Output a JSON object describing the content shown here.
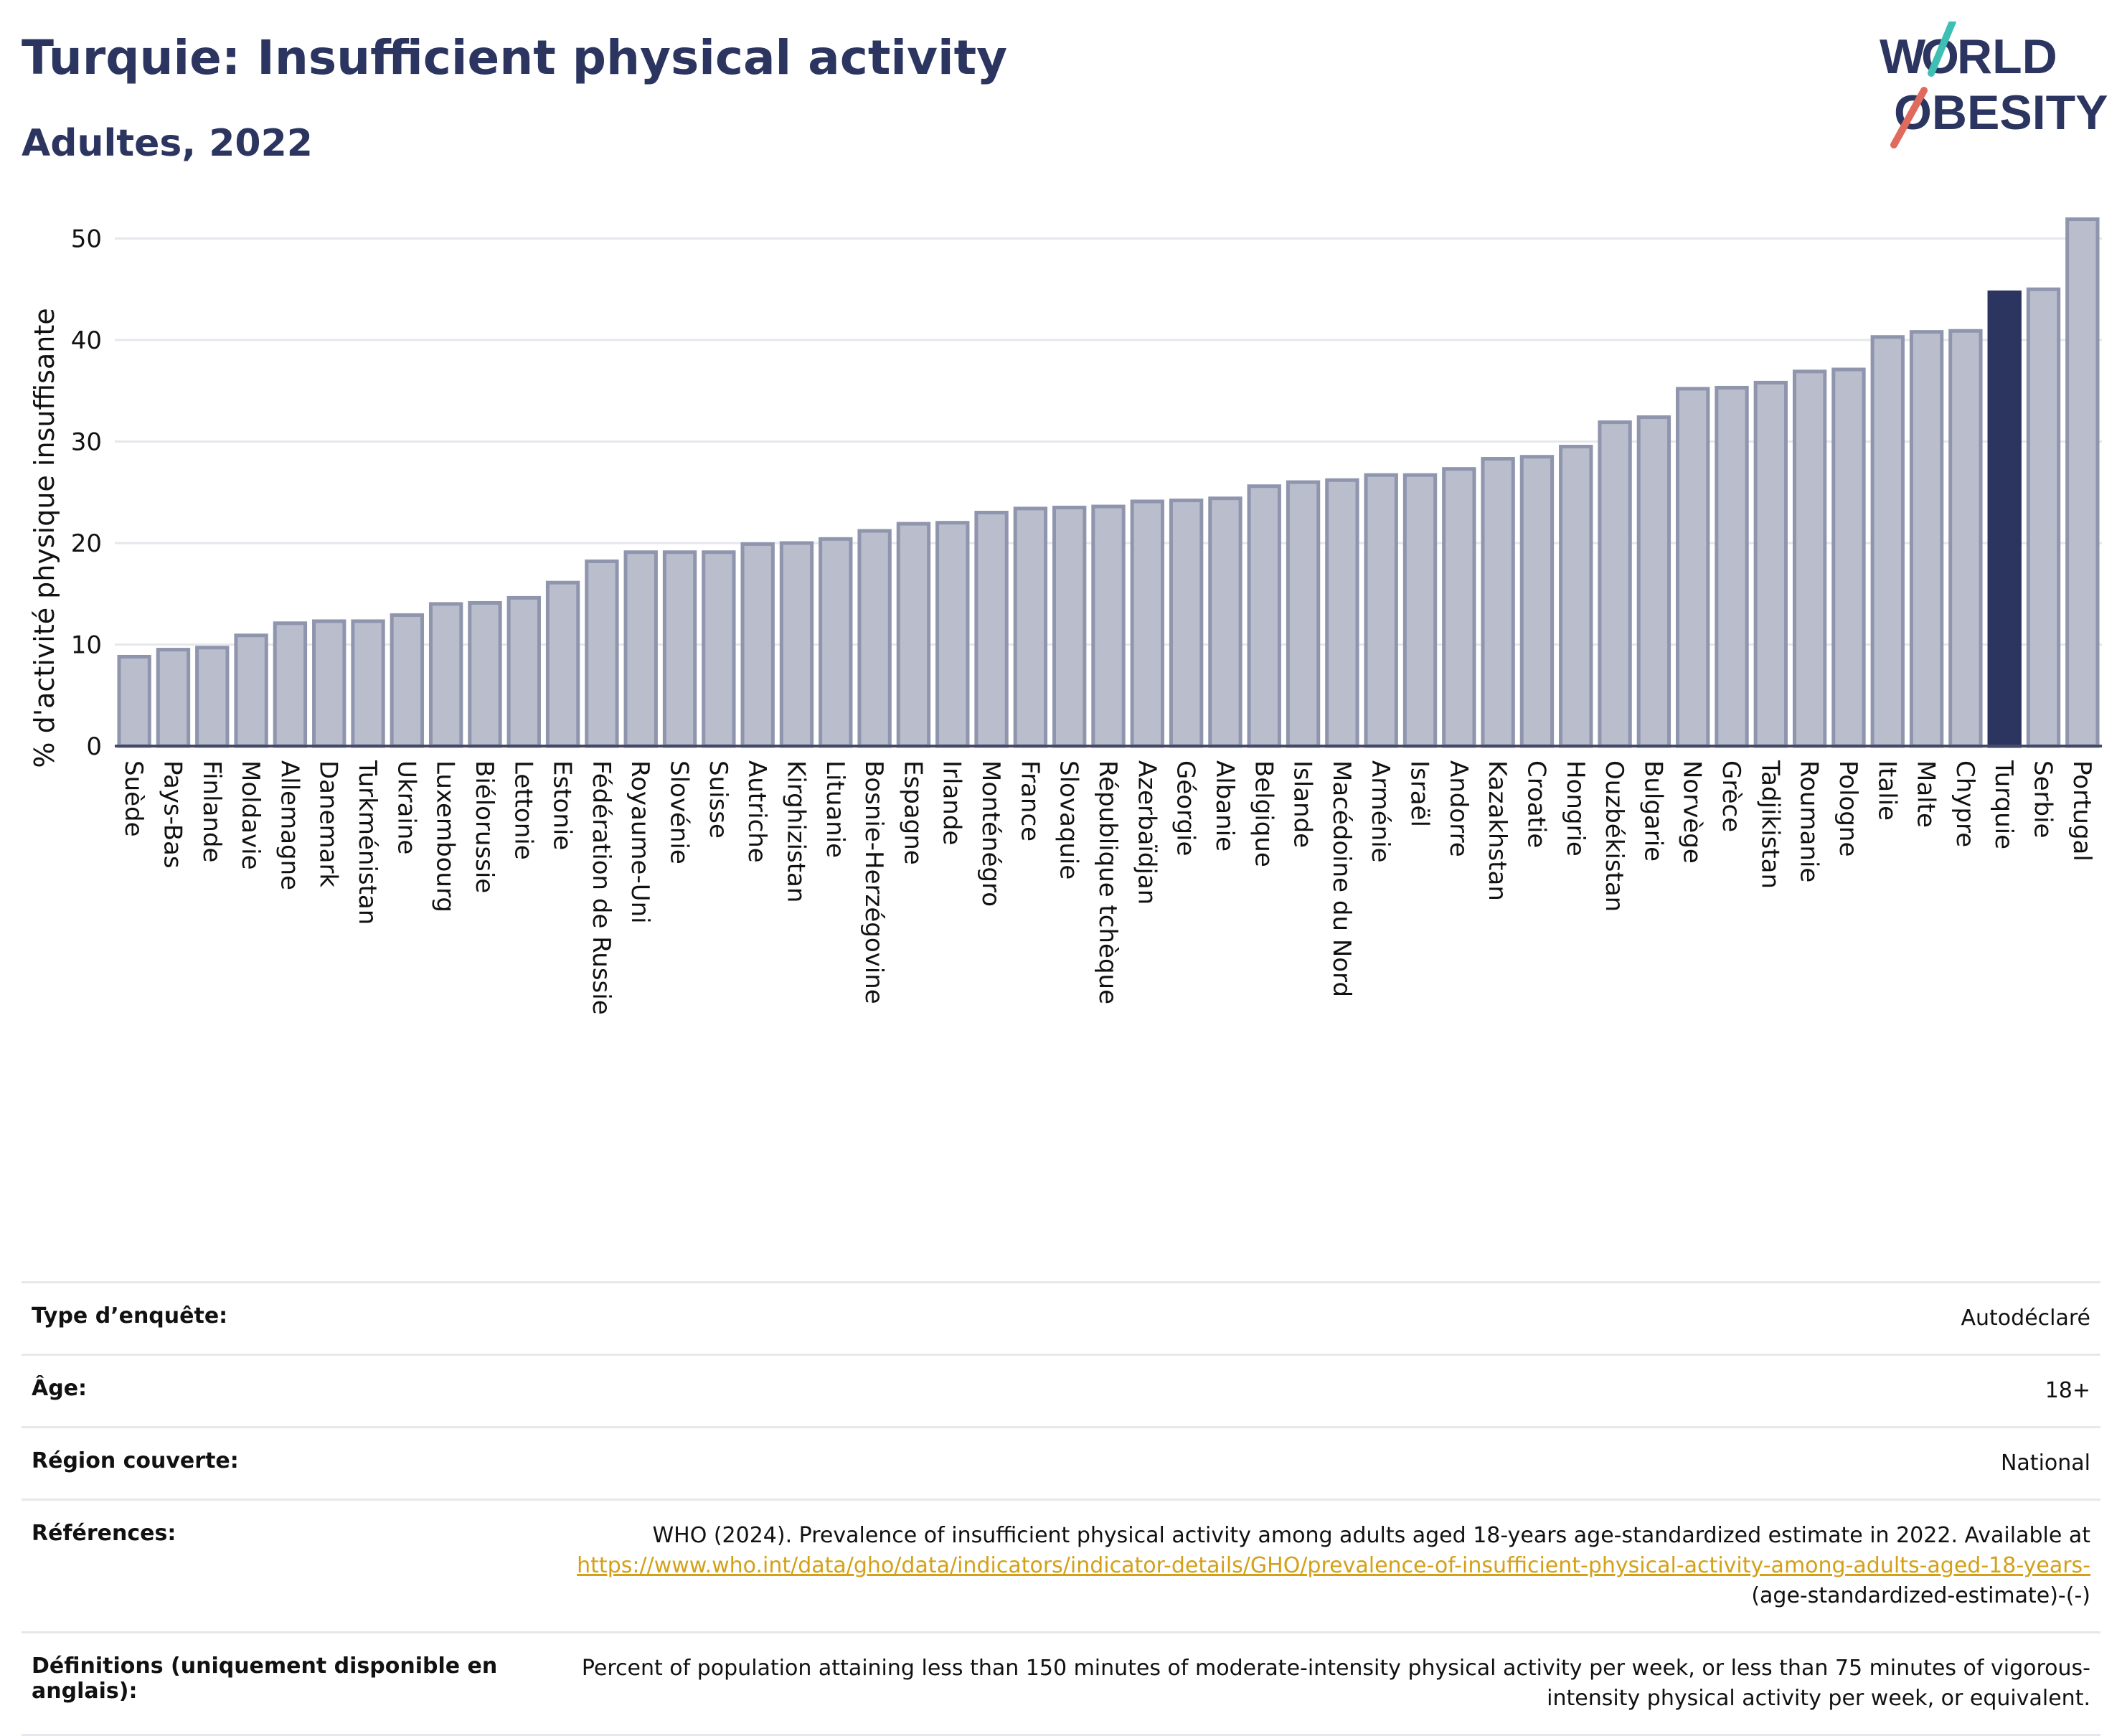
{
  "header": {
    "title": "Turquie: Insufficient physical activity",
    "subtitle": "Adultes, 2022",
    "logo_text": "WORLD OBESITY"
  },
  "colors": {
    "bar_default": "#b9bdcc",
    "bar_default_stroke": "#8f95ad",
    "bar_highlight": "#2b3560",
    "title": "#2b3560",
    "link": "#d4a017"
  },
  "chart_data": {
    "type": "bar",
    "title": "Turquie: Insufficient physical activity",
    "subtitle": "Adultes, 2022",
    "xlabel": "",
    "ylabel": "% d'activité physique insuffisante",
    "ylim": [
      0,
      53
    ],
    "yticks": [
      0,
      10,
      20,
      30,
      40,
      50
    ],
    "grid": true,
    "highlight": "Turquie",
    "categories": [
      "Suède",
      "Pays-Bas",
      "Finlande",
      "Moldavie",
      "Allemagne",
      "Danemark",
      "Turkménistan",
      "Ukraine",
      "Luxembourg",
      "Biélorussie",
      "Lettonie",
      "Estonie",
      "Fédération de Russie",
      "Royaume-Uni",
      "Slovénie",
      "Suisse",
      "Autriche",
      "Kirghizistan",
      "Lituanie",
      "Bosnie-Herzégovine",
      "Espagne",
      "Irlande",
      "Monténégro",
      "France",
      "Slovaquie",
      "République tchèque",
      "Azerbaïdjan",
      "Géorgie",
      "Albanie",
      "Belgique",
      "Islande",
      "Macédoine du Nord",
      "Arménie",
      "Israël",
      "Andorre",
      "Kazakhstan",
      "Croatie",
      "Hongrie",
      "Ouzbékistan",
      "Bulgarie",
      "Norvège",
      "Grèce",
      "Tadjikistan",
      "Roumanie",
      "Pologne",
      "Italie",
      "Malte",
      "Chypre",
      "Turquie",
      "Serbie",
      "Portugal"
    ],
    "values": [
      8.8,
      9.5,
      9.7,
      10.9,
      12.1,
      12.3,
      12.3,
      12.9,
      14.0,
      14.1,
      14.6,
      16.1,
      18.2,
      19.1,
      19.1,
      19.1,
      19.9,
      20.0,
      20.4,
      21.2,
      21.9,
      22.0,
      23.0,
      23.4,
      23.5,
      23.6,
      24.1,
      24.2,
      24.4,
      25.6,
      26.0,
      26.2,
      26.7,
      26.7,
      27.3,
      28.3,
      28.5,
      29.5,
      31.9,
      32.4,
      35.2,
      35.3,
      35.8,
      36.9,
      37.1,
      40.3,
      40.8,
      40.9,
      44.7,
      45.0,
      51.9
    ]
  },
  "meta": {
    "survey_type_label": "Type d’enquête:",
    "survey_type_value": "Autodéclaré",
    "age_label": "Âge:",
    "age_value": "18+",
    "region_label": "Région couverte:",
    "region_value": "National",
    "references_label": "Références:",
    "references_text": "WHO (2024). Prevalence of insufficient physical activity among adults aged 18-years age-standardized estimate in 2022. Available at",
    "references_link": "https://www.who.int/data/gho/data/indicators/indicator-details/GHO/prevalence-of-insufficient-physical-activity-among-adults-aged-18-years-",
    "references_suffix": "(age-standardized-estimate)-(-)",
    "definitions_label": "Définitions (uniquement disponible en anglais):",
    "definitions_value": "Percent of population attaining less than 150 minutes of moderate-intensity physical activity per week, or less than 75 minutes of vigorous-intensity physical activity per week, or equivalent."
  }
}
